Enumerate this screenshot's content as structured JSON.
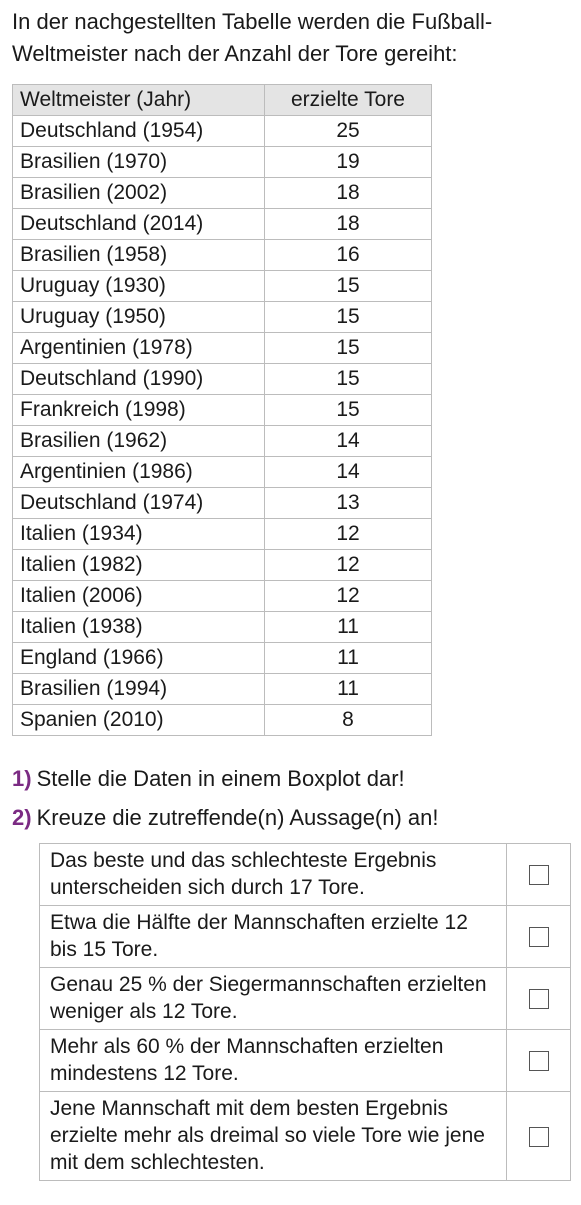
{
  "intro": "In der nachgestellten Tabelle werden die Fußball-Weltmeister nach der Anzahl der Tore gereiht:",
  "table": {
    "headers": [
      "Weltmeister (Jahr)",
      "erzielte Tore"
    ],
    "rows": [
      [
        "Deutschland (1954)",
        "25"
      ],
      [
        "Brasilien (1970)",
        "19"
      ],
      [
        "Brasilien (2002)",
        "18"
      ],
      [
        "Deutschland (2014)",
        "18"
      ],
      [
        "Brasilien (1958)",
        "16"
      ],
      [
        "Uruguay (1930)",
        "15"
      ],
      [
        "Uruguay (1950)",
        "15"
      ],
      [
        "Argentinien (1978)",
        "15"
      ],
      [
        "Deutschland (1990)",
        "15"
      ],
      [
        "Frankreich (1998)",
        "15"
      ],
      [
        "Brasilien (1962)",
        "14"
      ],
      [
        "Argentinien (1986)",
        "14"
      ],
      [
        "Deutschland (1974)",
        "13"
      ],
      [
        "Italien (1934)",
        "12"
      ],
      [
        "Italien (1982)",
        "12"
      ],
      [
        "Italien (2006)",
        "12"
      ],
      [
        "Italien (1938)",
        "11"
      ],
      [
        "England (1966)",
        "11"
      ],
      [
        "Brasilien (1994)",
        "11"
      ],
      [
        "Spanien (2010)",
        "8"
      ]
    ]
  },
  "tasks": [
    {
      "number": "1)",
      "text": "Stelle die Daten in einem Boxplot dar!"
    },
    {
      "number": "2)",
      "text": "Kreuze die zutreffende(n) Aussage(n) an!"
    }
  ],
  "statements": [
    {
      "text": "Das beste und das schlechteste Ergebnis unterscheiden sich durch 17 Tore.",
      "checked": false
    },
    {
      "text": "Etwa die Hälfte der Mannschaften erzielte 12 bis 15 Tore.",
      "checked": false
    },
    {
      "text": "Genau 25 % der Siegermannschaften erzielten weniger als 12 Tore.",
      "checked": false
    },
    {
      "text": "Mehr als 60 % der Mannschaften erzielten mindestens 12 Tore.",
      "checked": false
    },
    {
      "text": "Jene Mannschaft mit dem besten Ergebnis erzielte mehr als dreimal so viele Tore wie jene mit dem schlechtesten.",
      "checked": false
    }
  ],
  "colors": {
    "task_number": "#7b2b83",
    "table_header_bg": "#e4e4e4",
    "grid_line": "#bcbcbc"
  }
}
